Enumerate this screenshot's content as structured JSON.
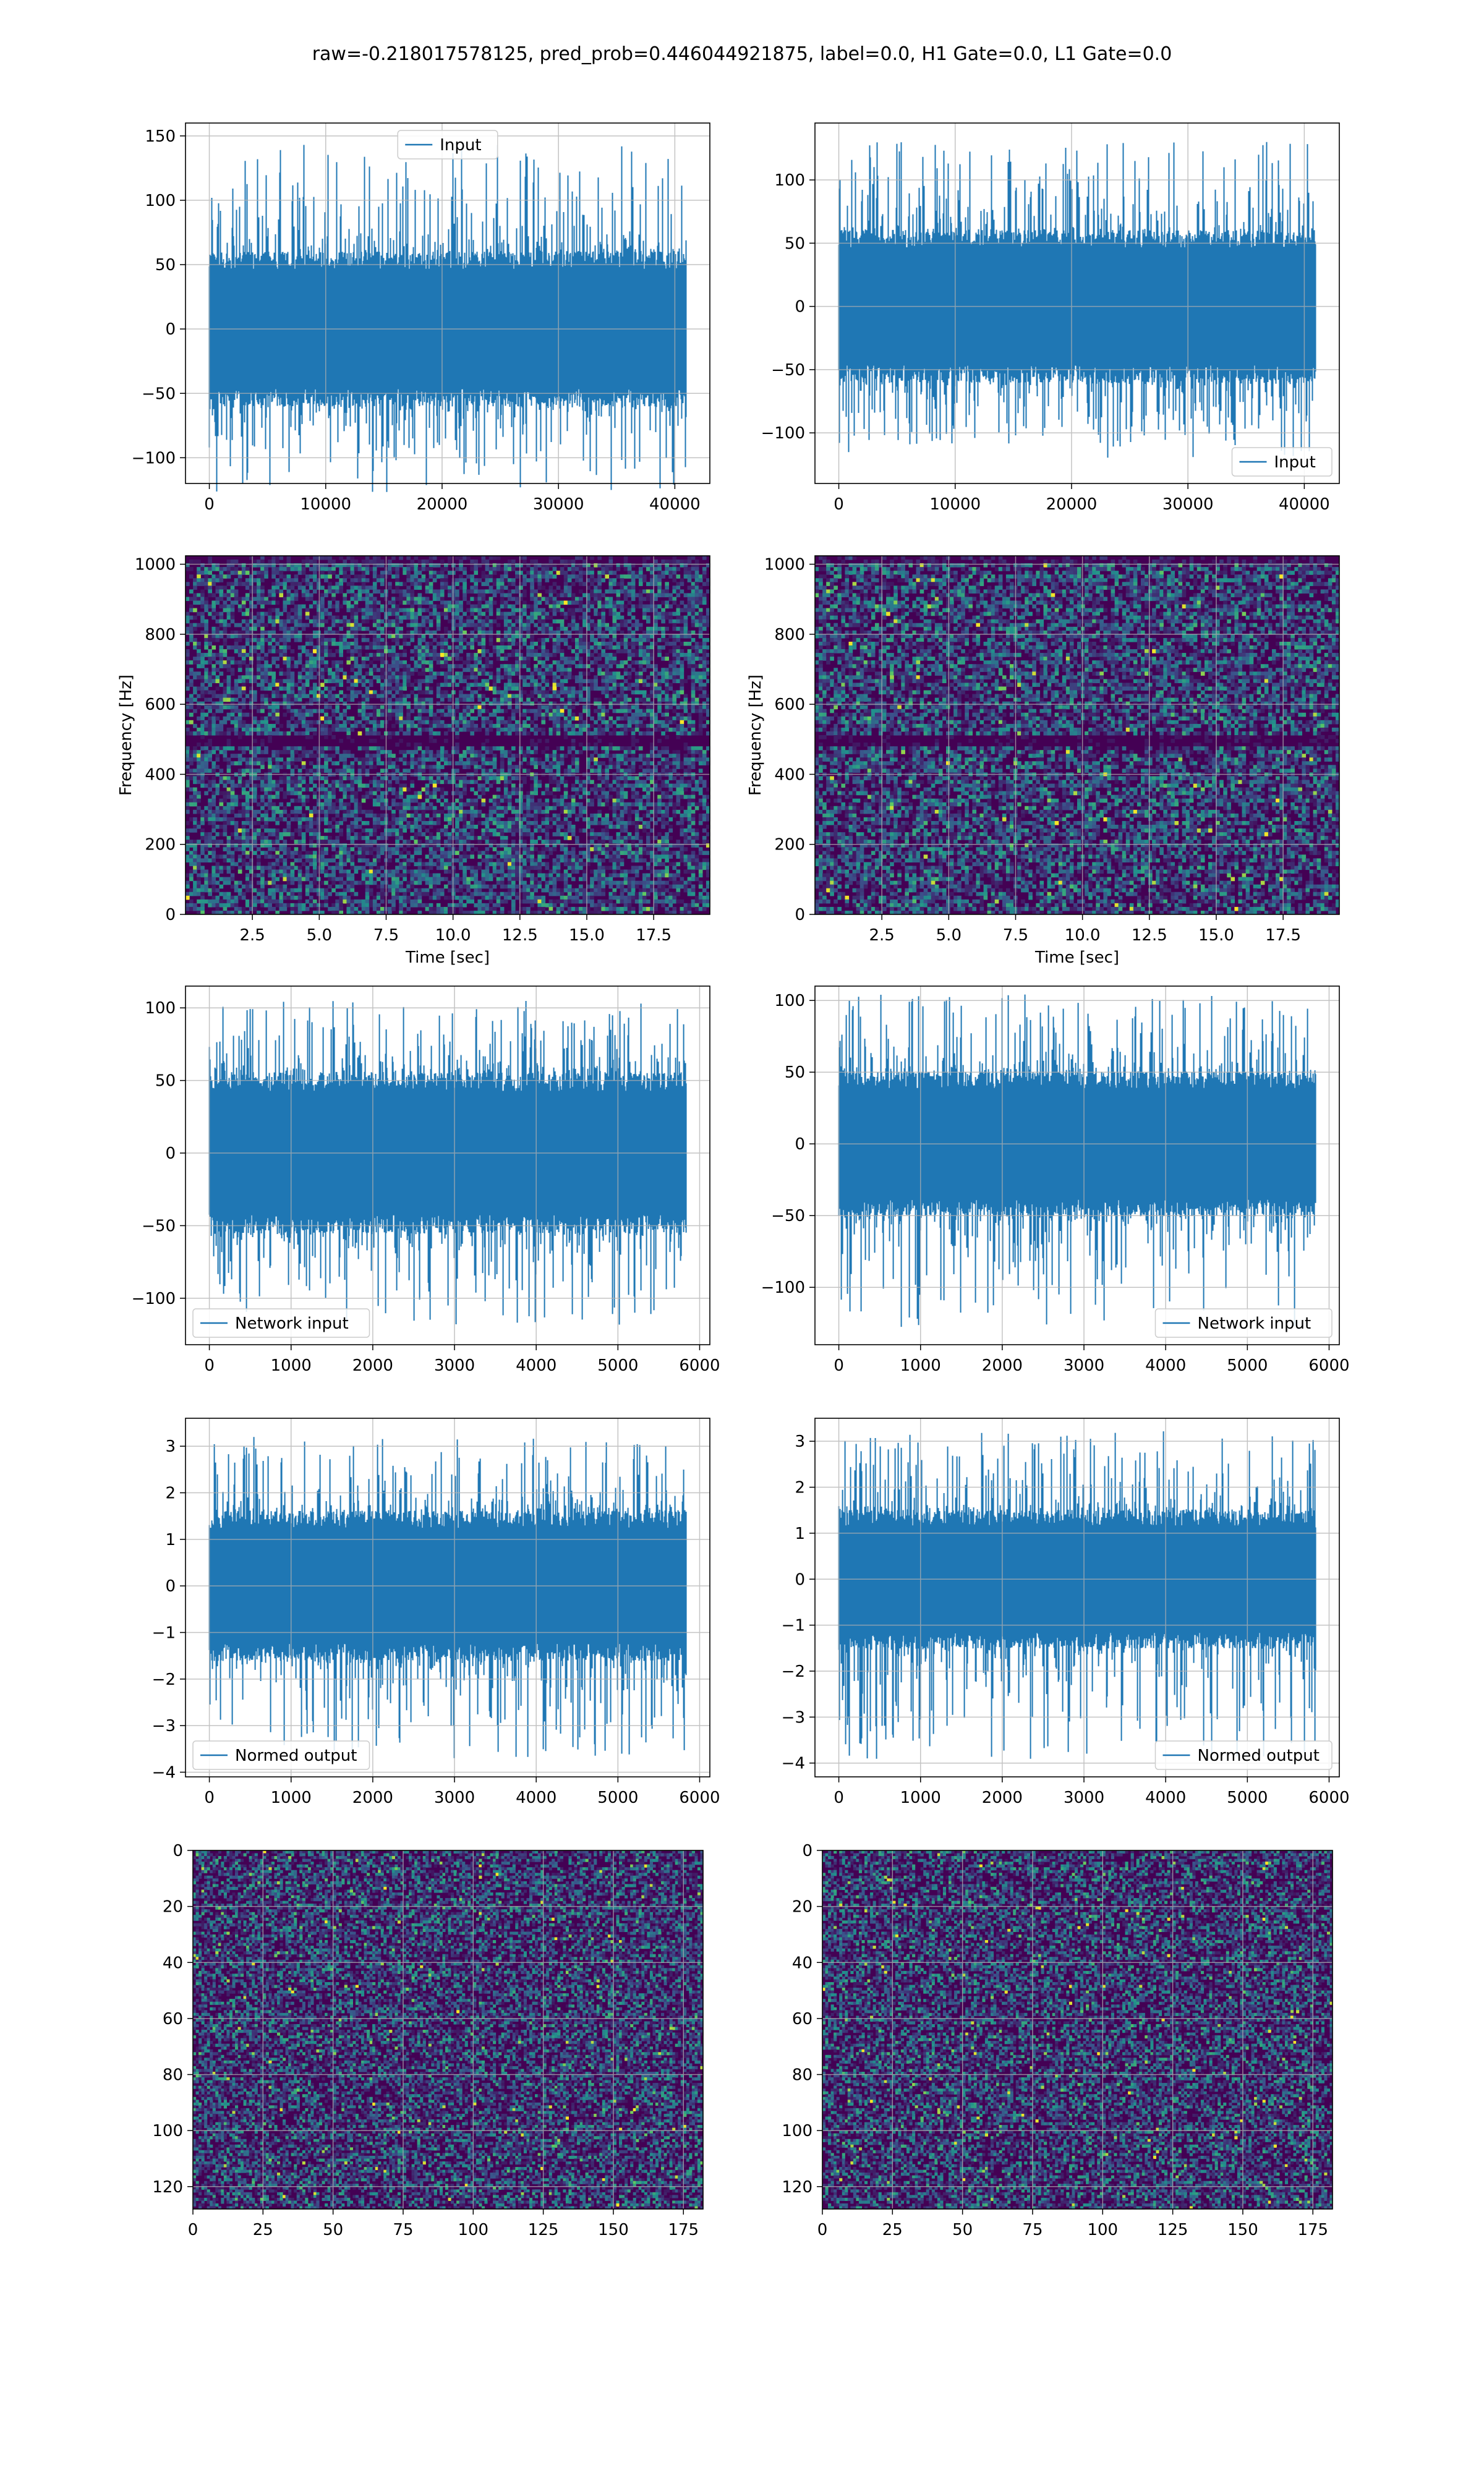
{
  "figure": {
    "title": "raw=-0.218017578125, pred_prob=0.446044921875, label=0.0, H1 Gate=0.0, L1 Gate=0.0"
  },
  "colors": {
    "line": "#1f77b4",
    "grid": "#b0b0b0",
    "viridis_low": "#440154",
    "viridis_mid": "#21918c",
    "viridis_high": "#fde725"
  },
  "chart_data": [
    {
      "id": "r1c1",
      "type": "line",
      "style": "noise",
      "seed": 11,
      "xlim": [
        -2048,
        43008
      ],
      "ylim": [
        -120,
        160
      ],
      "xticks": [
        0,
        10000,
        20000,
        30000,
        40000
      ],
      "xtick_labels": [
        "0",
        "10000",
        "20000",
        "30000",
        "40000"
      ],
      "yticks": [
        -100,
        -50,
        0,
        50,
        100,
        150
      ],
      "ytick_labels": [
        "−100",
        "−50",
        "0",
        "50",
        "100",
        "150"
      ],
      "x_range": [
        0,
        40960
      ],
      "y_center": 0,
      "y_bulk": 60,
      "y_peak_pos": 143,
      "y_peak_neg": -127,
      "legend": {
        "label": "Input",
        "loc": "upper center"
      },
      "xlabel": "",
      "ylabel": ""
    },
    {
      "id": "r1c2",
      "type": "line",
      "style": "noise",
      "seed": 23,
      "xlim": [
        -2048,
        43008
      ],
      "ylim": [
        -140,
        145
      ],
      "xticks": [
        0,
        10000,
        20000,
        30000,
        40000
      ],
      "xtick_labels": [
        "0",
        "10000",
        "20000",
        "30000",
        "40000"
      ],
      "yticks": [
        -100,
        -50,
        0,
        50,
        100
      ],
      "ytick_labels": [
        "−100",
        "−50",
        "0",
        "50",
        "100"
      ],
      "x_range": [
        0,
        40960
      ],
      "y_center": 0,
      "y_bulk": 60,
      "y_peak_pos": 130,
      "y_peak_neg": -120,
      "legend": {
        "label": "Input",
        "loc": "lower right"
      },
      "xlabel": "",
      "ylabel": ""
    },
    {
      "id": "r2c1",
      "type": "heatmap",
      "style": "spectrogram",
      "seed": 37,
      "xlim": [
        0,
        19.6
      ],
      "ylim": [
        0,
        1024
      ],
      "xticks": [
        2.5,
        5.0,
        7.5,
        10.0,
        12.5,
        15.0,
        17.5
      ],
      "xtick_labels": [
        "2.5",
        "5.0",
        "7.5",
        "10.0",
        "12.5",
        "15.0",
        "17.5"
      ],
      "yticks": [
        0,
        200,
        400,
        600,
        800,
        1000
      ],
      "ytick_labels": [
        "0",
        "200",
        "400",
        "600",
        "800",
        "1000"
      ],
      "xlabel": "Time [sec]",
      "ylabel": "Frequency [Hz]",
      "dark_band_hz": 500
    },
    {
      "id": "r2c2",
      "type": "heatmap",
      "style": "spectrogram",
      "seed": 41,
      "xlim": [
        0,
        19.6
      ],
      "ylim": [
        0,
        1024
      ],
      "xticks": [
        2.5,
        5.0,
        7.5,
        10.0,
        12.5,
        15.0,
        17.5
      ],
      "xtick_labels": [
        "2.5",
        "5.0",
        "7.5",
        "10.0",
        "12.5",
        "15.0",
        "17.5"
      ],
      "yticks": [
        0,
        200,
        400,
        600,
        800,
        1000
      ],
      "ytick_labels": [
        "0",
        "200",
        "400",
        "600",
        "800",
        "1000"
      ],
      "xlabel": "Time [sec]",
      "ylabel": "Frequency [Hz]",
      "dark_band_hz": 500
    },
    {
      "id": "r3c1",
      "type": "line",
      "style": "noise",
      "seed": 53,
      "xlim": [
        -292,
        6125
      ],
      "ylim": [
        -132,
        115
      ],
      "xticks": [
        0,
        1000,
        2000,
        3000,
        4000,
        5000,
        6000
      ],
      "xtick_labels": [
        "0",
        "1000",
        "2000",
        "3000",
        "4000",
        "5000",
        "6000"
      ],
      "yticks": [
        -100,
        -50,
        0,
        50,
        100
      ],
      "ytick_labels": [
        "−100",
        "−50",
        "0",
        "50",
        "100"
      ],
      "x_range": [
        0,
        5833
      ],
      "y_center": 0,
      "y_bulk": 55,
      "y_peak_pos": 105,
      "y_peak_neg": -120,
      "legend": {
        "label": "Network input",
        "loc": "lower left"
      },
      "xlabel": "",
      "ylabel": ""
    },
    {
      "id": "r3c2",
      "type": "line",
      "style": "noise",
      "seed": 67,
      "xlim": [
        -292,
        6125
      ],
      "ylim": [
        -140,
        110
      ],
      "xticks": [
        0,
        1000,
        2000,
        3000,
        4000,
        5000,
        6000
      ],
      "xtick_labels": [
        "0",
        "1000",
        "2000",
        "3000",
        "4000",
        "5000",
        "6000"
      ],
      "yticks": [
        -100,
        -50,
        0,
        50,
        100
      ],
      "ytick_labels": [
        "−100",
        "−50",
        "0",
        "50",
        "100"
      ],
      "x_range": [
        0,
        5833
      ],
      "y_center": 0,
      "y_bulk": 50,
      "y_peak_pos": 105,
      "y_peak_neg": -128,
      "legend": {
        "label": "Network input",
        "loc": "lower right"
      },
      "xlabel": "",
      "ylabel": ""
    },
    {
      "id": "r4c1",
      "type": "line",
      "style": "noise",
      "seed": 79,
      "xlim": [
        -292,
        6125
      ],
      "ylim": [
        -4.1,
        3.6
      ],
      "xticks": [
        0,
        1000,
        2000,
        3000,
        4000,
        5000,
        6000
      ],
      "xtick_labels": [
        "0",
        "1000",
        "2000",
        "3000",
        "4000",
        "5000",
        "6000"
      ],
      "yticks": [
        -4,
        -3,
        -2,
        -1,
        0,
        1,
        2,
        3
      ],
      "ytick_labels": [
        "−4",
        "−3",
        "−2",
        "−1",
        "0",
        "1",
        "2",
        "3"
      ],
      "x_range": [
        0,
        5833
      ],
      "y_center": 0,
      "y_bulk": 1.6,
      "y_peak_pos": 3.2,
      "y_peak_neg": -3.7,
      "legend": {
        "label": "Normed output",
        "loc": "lower left"
      },
      "xlabel": "",
      "ylabel": ""
    },
    {
      "id": "r4c2",
      "type": "line",
      "style": "noise",
      "seed": 97,
      "xlim": [
        -292,
        6125
      ],
      "ylim": [
        -4.3,
        3.5
      ],
      "xticks": [
        0,
        1000,
        2000,
        3000,
        4000,
        5000,
        6000
      ],
      "xtick_labels": [
        "0",
        "1000",
        "2000",
        "3000",
        "4000",
        "5000",
        "6000"
      ],
      "yticks": [
        -4,
        -3,
        -2,
        -1,
        0,
        1,
        2,
        3
      ],
      "ytick_labels": [
        "−4",
        "−3",
        "−2",
        "−1",
        "0",
        "1",
        "2",
        "3"
      ],
      "x_range": [
        0,
        5833
      ],
      "y_center": 0,
      "y_bulk": 1.5,
      "y_peak_pos": 3.25,
      "y_peak_neg": -4.0,
      "legend": {
        "label": "Normed output",
        "loc": "lower right"
      },
      "xlabel": "",
      "ylabel": ""
    },
    {
      "id": "r5c1",
      "type": "heatmap",
      "style": "image",
      "seed": 101,
      "xlim": [
        0,
        182
      ],
      "ylim": [
        128,
        0
      ],
      "xticks": [
        0,
        25,
        50,
        75,
        100,
        125,
        150,
        175
      ],
      "xtick_labels": [
        "0",
        "25",
        "50",
        "75",
        "100",
        "125",
        "150",
        "175"
      ],
      "yticks": [
        0,
        20,
        40,
        60,
        80,
        100,
        120
      ],
      "ytick_labels": [
        "0",
        "20",
        "40",
        "60",
        "80",
        "100",
        "120"
      ],
      "xlabel": "",
      "ylabel": ""
    },
    {
      "id": "r5c2",
      "type": "heatmap",
      "style": "image",
      "seed": 113,
      "xlim": [
        0,
        182
      ],
      "ylim": [
        128,
        0
      ],
      "xticks": [
        0,
        25,
        50,
        75,
        100,
        125,
        150,
        175
      ],
      "xtick_labels": [
        "0",
        "25",
        "50",
        "75",
        "100",
        "125",
        "150",
        "175"
      ],
      "yticks": [
        0,
        20,
        40,
        60,
        80,
        100,
        120
      ],
      "ytick_labels": [
        "0",
        "20",
        "40",
        "60",
        "80",
        "100",
        "120"
      ],
      "xlabel": "",
      "ylabel": ""
    }
  ]
}
